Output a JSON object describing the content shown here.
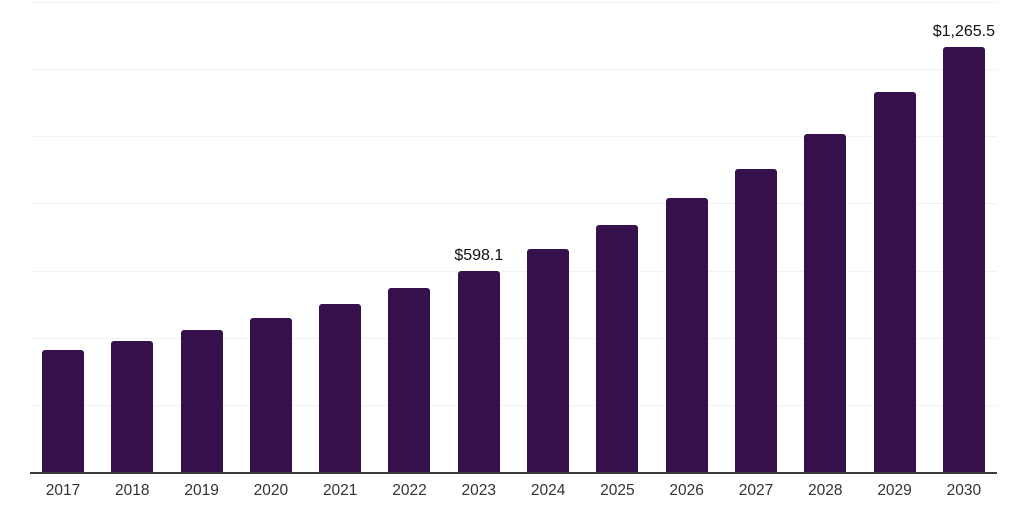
{
  "chart_data": {
    "type": "bar",
    "title": "",
    "xlabel": "",
    "ylabel": "",
    "categories": [
      "2017",
      "2018",
      "2019",
      "2020",
      "2021",
      "2022",
      "2023",
      "2024",
      "2025",
      "2026",
      "2027",
      "2028",
      "2029",
      "2030"
    ],
    "values": [
      363,
      391,
      423,
      458,
      502,
      547,
      598.1,
      664,
      735,
      815,
      904,
      1008,
      1132,
      1265.5
    ],
    "data_labels": {
      "2023": "$598.1",
      "2030": "$1,265.5"
    },
    "ylim": [
      0,
      1400
    ],
    "gridline_step": 200,
    "grid": "horizontal-only",
    "legend": "none",
    "y_axis_tick_labels": "none",
    "bar_color": "#35104b",
    "axis_line_color": "#3b3b3b",
    "gridline_color": "#f1f1f1",
    "tick_label_color": "#333333",
    "data_label_color": "#111111",
    "background_color": "#ffffff"
  }
}
